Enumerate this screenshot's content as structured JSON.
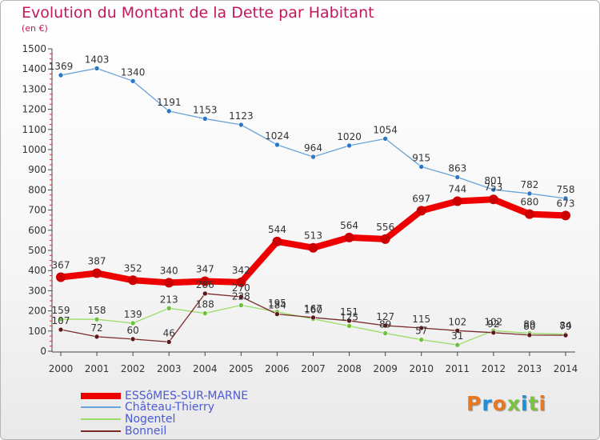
{
  "title": "Evolution du Montant de la Dette par Habitant",
  "subtitle": "(en €)",
  "logo": "Proxiti",
  "colors": {
    "title": "#c2185b",
    "legend_text": "#4b5bd6",
    "logo_letters": [
      "#e8771e",
      "#1d8fd8",
      "#e8771e",
      "#7cc242",
      "#1d8fd8",
      "#7cc242",
      "#e8771e"
    ]
  },
  "chart_data": {
    "type": "line",
    "x": [
      "2000",
      "2001",
      "2002",
      "2003",
      "2004",
      "2005",
      "2006",
      "2007",
      "2008",
      "2009",
      "2010",
      "2011",
      "2012",
      "2013",
      "2014"
    ],
    "ylim": [
      0,
      1500
    ],
    "yticks": [
      0,
      100,
      200,
      300,
      400,
      500,
      600,
      700,
      800,
      900,
      1000,
      1100,
      1200,
      1300,
      1400,
      1500
    ],
    "grid": false,
    "legend_position": "bottom-left",
    "series": [
      {
        "name": "ESSôMES-SUR-MARNE",
        "color": "#ee0000",
        "point_color": "#cc0000",
        "line_width": 8,
        "marker_radius": 6,
        "values": [
          367,
          387,
          352,
          340,
          347,
          342,
          544,
          513,
          564,
          556,
          697,
          744,
          753,
          680,
          673
        ]
      },
      {
        "name": "Château-Thierry",
        "color": "#6aa3d8",
        "point_color": "#2a78c6",
        "line_width": 1.3,
        "marker_radius": 3,
        "values": [
          1369,
          1403,
          1340,
          1191,
          1153,
          1123,
          1024,
          964,
          1020,
          1054,
          915,
          863,
          801,
          782,
          758
        ]
      },
      {
        "name": "Nogentel",
        "color": "#99dd66",
        "point_color": "#6cc23a",
        "line_width": 1.3,
        "marker_radius": 3,
        "values": [
          159,
          158,
          139,
          213,
          188,
          228,
          195,
          160,
          125,
          89,
          57,
          31,
          102,
          89,
          84
        ]
      },
      {
        "name": "Bonneil",
        "color": "#7a2a2a",
        "point_color": "#5a1a1a",
        "line_width": 1.3,
        "marker_radius": 3,
        "values": [
          107,
          72,
          60,
          46,
          286,
          270,
          184,
          167,
          151,
          127,
          115,
          102,
          92,
          80,
          79
        ]
      }
    ]
  }
}
